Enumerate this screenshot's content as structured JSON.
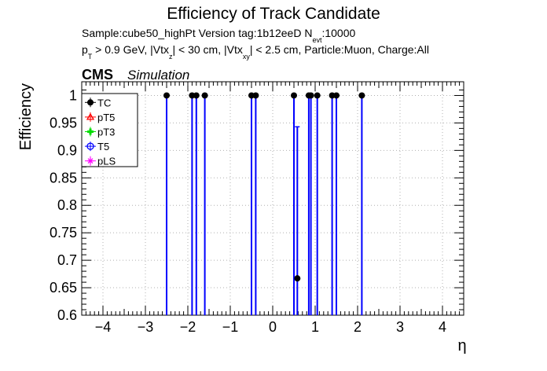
{
  "chart_data": {
    "type": "scatter",
    "title": "Efficiency of Track Candidate",
    "info": {
      "sample_version": "Sample:cube50_highPt   Version tag:1b12eeD  N",
      "nevt_sub": "evt",
      "nevt_value": ":10000",
      "cuts": {
        "p": "p",
        "p_sub": "T",
        "a": " > 0.9 GeV, |Vtx",
        "a_sub": "z",
        "b": "| < 30 cm, |Vtx",
        "b_sub": "xy",
        "c": "| < 2.5 cm, Particle:Muon, Charge:All"
      }
    },
    "cms_label": "CMS",
    "simulation_label": "Simulation",
    "xlabel": "η",
    "ylabel": "Efficiency",
    "xlim": [
      -4.5,
      4.5
    ],
    "ylim": [
      0.6,
      1.025
    ],
    "xticks": [
      -4,
      -3,
      -2,
      -1,
      0,
      1,
      2,
      3,
      4
    ],
    "yticks": [
      0.6,
      0.65,
      0.7,
      0.75,
      0.8,
      0.85,
      0.9,
      0.95,
      1
    ],
    "grid": true,
    "legend_position": "top-left",
    "legend": [
      {
        "name": "TC",
        "color": "#000000",
        "marker": "filled-circle"
      },
      {
        "name": "pT5",
        "color": "#ff0000",
        "marker": "open-triangle"
      },
      {
        "name": "pT3",
        "color": "#00dd00",
        "marker": "cross"
      },
      {
        "name": "T5",
        "color": "#0000ff",
        "marker": "open-circle"
      },
      {
        "name": "pLS",
        "color": "#ff00ff",
        "marker": "star"
      }
    ],
    "colors": {
      "error_bar": "#0000ff",
      "marker": "#000000"
    },
    "points": [
      {
        "x": -2.5,
        "y": 1.0,
        "ylow": 0.6
      },
      {
        "x": -1.9,
        "y": 1.0,
        "ylow": 0.6
      },
      {
        "x": -1.8,
        "y": 1.0,
        "ylow": 0.6
      },
      {
        "x": -1.6,
        "y": 1.0,
        "ylow": 0.6
      },
      {
        "x": -0.5,
        "y": 1.0,
        "ylow": 0.6
      },
      {
        "x": -0.4,
        "y": 1.0,
        "ylow": 0.6
      },
      {
        "x": 0.5,
        "y": 1.0,
        "ylow": 0.6
      },
      {
        "x": 0.58,
        "y": 0.667,
        "ylow": 0.6,
        "yhigh": 0.943
      },
      {
        "x": 0.85,
        "y": 1.0,
        "ylow": 0.6
      },
      {
        "x": 0.9,
        "y": 1.0,
        "ylow": 0.6
      },
      {
        "x": 1.05,
        "y": 1.0,
        "ylow": 0.6
      },
      {
        "x": 1.4,
        "y": 1.0,
        "ylow": 0.6
      },
      {
        "x": 1.5,
        "y": 1.0,
        "ylow": 0.6
      },
      {
        "x": 2.1,
        "y": 1.0,
        "ylow": 0.6
      }
    ]
  }
}
